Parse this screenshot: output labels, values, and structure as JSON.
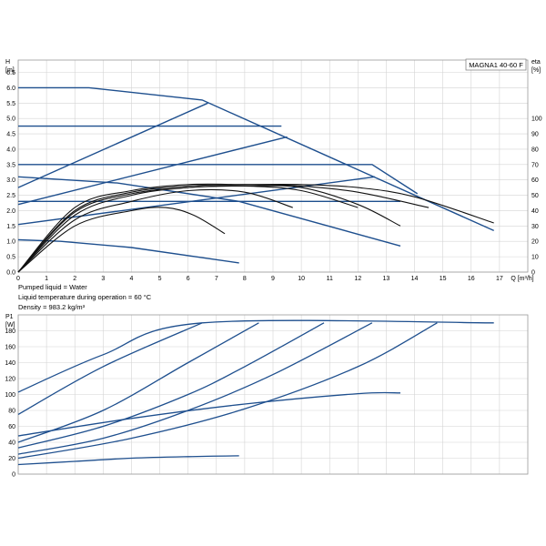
{
  "model": "MAGNA1 40-60 F",
  "notes": [
    "Pumped liquid = Water",
    "Liquid temperature during operation = 60 °C",
    "Density = 983.2 kg/m³"
  ],
  "chart_data": [
    {
      "type": "line",
      "id": "head",
      "ylabel_lines": [
        "H",
        "[m]"
      ],
      "y2label_lines": [
        "eta",
        "[%]"
      ],
      "xlabel": "Q [m³/h]",
      "xlim": [
        0,
        18
      ],
      "ylim": [
        0,
        6.9
      ],
      "x_ticks": [
        0,
        1,
        2,
        3,
        4,
        5,
        6,
        7,
        8,
        9,
        10,
        11,
        12,
        13,
        14,
        15,
        16,
        17
      ],
      "y_ticks": [
        0.0,
        0.5,
        1.0,
        1.5,
        2.0,
        2.5,
        3.0,
        3.5,
        4.0,
        4.5,
        5.0,
        5.5,
        6.0,
        6.5
      ],
      "y2_ticks": [
        0,
        10,
        20,
        30,
        40,
        50,
        60,
        70,
        80,
        90,
        100
      ],
      "y2lim": [
        0,
        138
      ],
      "grid": true,
      "head_series": [
        {
          "x": [
            0,
            2.5,
            6.5,
            16.8
          ],
          "y": [
            6.0,
            6.0,
            5.6,
            1.35
          ]
        },
        {
          "x": [
            0,
            9.3
          ],
          "y": [
            4.75,
            4.75
          ]
        },
        {
          "x": [
            0,
            12.5,
            14.1
          ],
          "y": [
            3.5,
            3.5,
            2.55
          ]
        },
        {
          "x": [
            0,
            13.5
          ],
          "y": [
            2.3,
            2.3
          ]
        },
        {
          "x": [
            0,
            6.7
          ],
          "y": [
            2.75,
            5.5
          ]
        },
        {
          "x": [
            0,
            9.5
          ],
          "y": [
            2.2,
            4.4
          ]
        },
        {
          "x": [
            0,
            3.5,
            7.8,
            13.5
          ],
          "y": [
            3.1,
            2.9,
            2.3,
            0.85
          ]
        },
        {
          "x": [
            0,
            12.6
          ],
          "y": [
            1.55,
            3.1
          ]
        },
        {
          "x": [
            0,
            1.5,
            4.0,
            7.8
          ],
          "y": [
            1.05,
            1.0,
            0.8,
            0.3
          ]
        }
      ],
      "eta_series": [
        {
          "x": [
            0,
            2,
            4,
            5.2,
            6.2,
            7.3
          ],
          "y": [
            0,
            30,
            40,
            42,
            37,
            25
          ]
        },
        {
          "x": [
            0,
            2,
            4,
            6,
            8,
            9.7
          ],
          "y": [
            0,
            34,
            46,
            53,
            52,
            42
          ]
        },
        {
          "x": [
            0,
            2,
            4,
            6,
            8,
            10,
            12
          ],
          "y": [
            0,
            37,
            50,
            55,
            56,
            53,
            42
          ]
        },
        {
          "x": [
            0,
            2,
            4,
            6,
            8,
            10,
            12,
            13.5
          ],
          "y": [
            0,
            39,
            51,
            55,
            56,
            55,
            44,
            30
          ]
        },
        {
          "x": [
            0,
            2,
            4,
            6,
            8,
            10,
            12,
            14.5
          ],
          "y": [
            0,
            40,
            52,
            56,
            57,
            56,
            52,
            42
          ]
        },
        {
          "x": [
            0,
            2,
            4,
            6,
            8,
            10,
            12,
            14,
            16.8
          ],
          "y": [
            0,
            42,
            53,
            57,
            57,
            57,
            55,
            49,
            32
          ]
        }
      ]
    },
    {
      "type": "line",
      "id": "power",
      "ylabel_lines": [
        "P1",
        "[W]"
      ],
      "xlim": [
        0,
        18
      ],
      "ylim": [
        0,
        200
      ],
      "y_ticks": [
        0,
        20,
        40,
        60,
        80,
        100,
        120,
        140,
        160,
        180
      ],
      "grid": true,
      "power_series": [
        {
          "x": [
            0,
            2,
            4,
            6,
            7.8
          ],
          "y": [
            12,
            16,
            20,
            22,
            23
          ]
        },
        {
          "x": [
            0,
            4,
            8,
            12,
            13.5
          ],
          "y": [
            48,
            70,
            88,
            101,
            102
          ]
        },
        {
          "x": [
            0,
            3,
            6.5,
            16.8
          ],
          "y": [
            103,
            150,
            190,
            190
          ]
        },
        {
          "x": [
            0,
            3,
            6.5
          ],
          "y": [
            75,
            135,
            190
          ]
        },
        {
          "x": [
            0,
            3,
            6,
            8.5
          ],
          "y": [
            40,
            80,
            140,
            190
          ]
        },
        {
          "x": [
            0,
            3,
            6,
            8,
            10.8
          ],
          "y": [
            33,
            60,
            100,
            135,
            190
          ]
        },
        {
          "x": [
            0,
            3,
            6,
            9,
            12.5
          ],
          "y": [
            25,
            45,
            80,
            125,
            190
          ]
        },
        {
          "x": [
            0,
            4,
            8,
            12,
            14.8
          ],
          "y": [
            20,
            45,
            82,
            135,
            190
          ]
        }
      ]
    }
  ]
}
